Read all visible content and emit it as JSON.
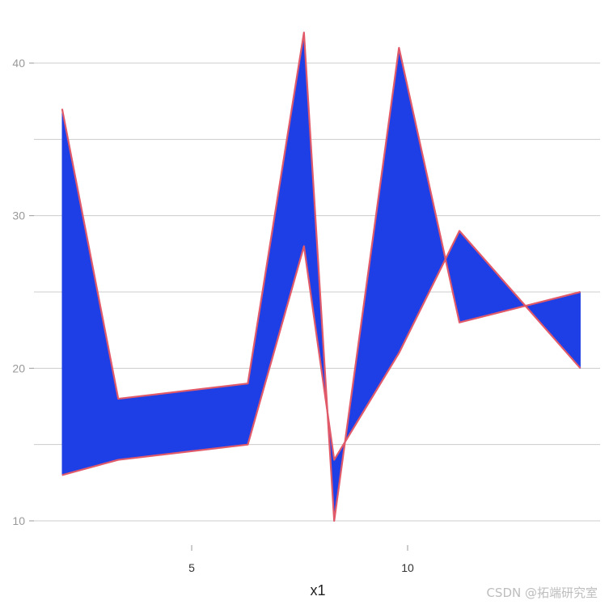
{
  "chart_data": {
    "type": "area",
    "title": "",
    "xlabel": "x1",
    "ylabel": "",
    "xlim": [
      1.5,
      14.3
    ],
    "ylim": [
      9,
      44
    ],
    "x_ticks": [
      5,
      10
    ],
    "y_ticks": [
      10,
      20,
      30,
      40
    ],
    "grid": "horizontal",
    "series": [
      {
        "x": [
          2,
          3.3,
          6.3,
          7.6,
          8.3,
          9.8,
          11.2,
          14
        ],
        "y": [
          37,
          18,
          19,
          42,
          10,
          41,
          23,
          25
        ]
      },
      {
        "x": [
          2,
          3.3,
          6.3,
          7.6,
          8.3,
          9.8,
          11.2,
          14
        ],
        "y": [
          13,
          14,
          15,
          28,
          14,
          21,
          29,
          20
        ]
      }
    ],
    "fill_color": "#1f3fe6",
    "line_color": "#e05a6a"
  },
  "watermark": "CSDN @拓端研究室"
}
